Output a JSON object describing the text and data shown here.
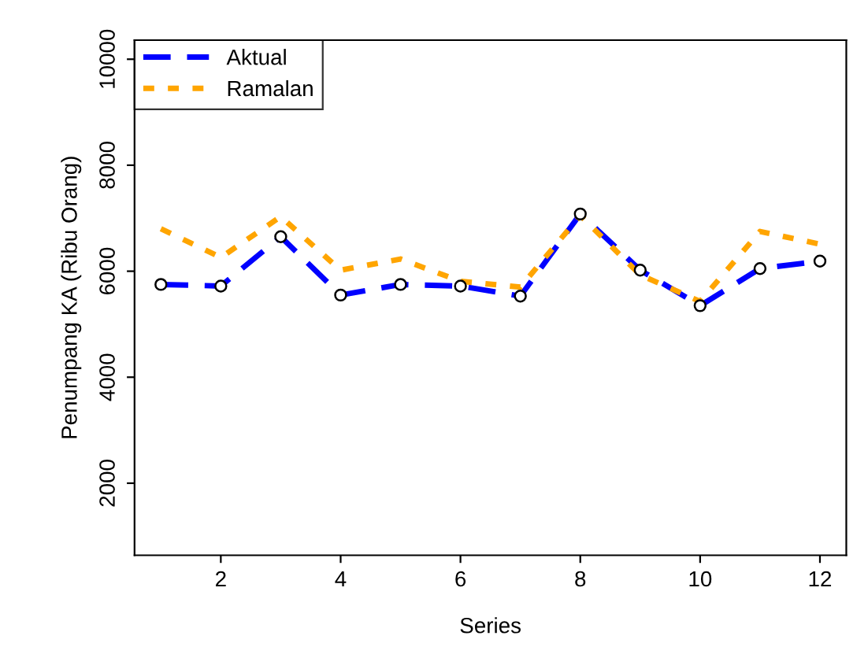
{
  "chart_data": {
    "type": "line",
    "xlabel": "Series",
    "ylabel": "Penumpang KA (Ribu Orang)",
    "x": [
      1,
      2,
      3,
      4,
      5,
      6,
      7,
      8,
      9,
      10,
      11,
      12
    ],
    "series": [
      {
        "name": "Aktual",
        "color": "#0000ff",
        "line_style": "dashed",
        "marker": "circle",
        "values": [
          5750,
          5720,
          6650,
          5550,
          5750,
          5720,
          5530,
          7080,
          6020,
          5350,
          6050,
          6190
        ]
      },
      {
        "name": "Ramalan",
        "color": "#ffa500",
        "line_style": "dotted",
        "marker": "none",
        "values": [
          6800,
          6260,
          7030,
          6020,
          6230,
          5810,
          5700,
          7050,
          5930,
          5430,
          6750,
          6510
        ]
      }
    ],
    "xlim": [
      0.56,
      12.44
    ],
    "xticks": [
      2,
      4,
      6,
      8,
      10,
      12
    ],
    "ylim": [
      640,
      10360
    ],
    "yticks": [
      2000,
      4000,
      6000,
      8000,
      10000
    ],
    "grid": false,
    "legend": "top left"
  }
}
